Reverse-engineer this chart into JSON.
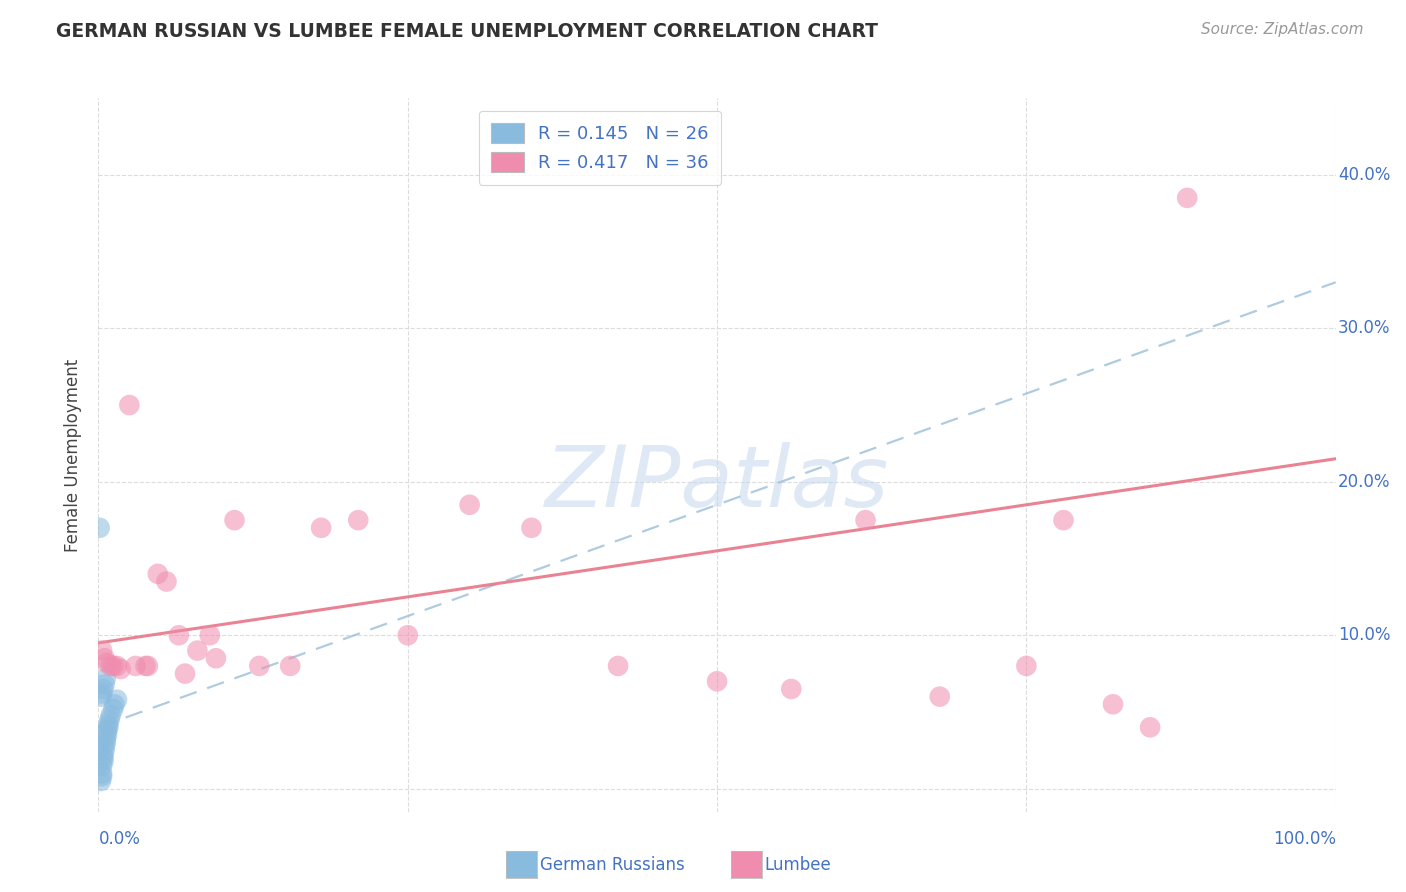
{
  "title": "GERMAN RUSSIAN VS LUMBEE FEMALE UNEMPLOYMENT CORRELATION CHART",
  "source": "Source: ZipAtlas.com",
  "ylabel": "Female Unemployment",
  "watermark": "ZIPatlas",
  "xlim": [
    0.0,
    1.0
  ],
  "ylim": [
    -0.015,
    0.45
  ],
  "yticks": [
    0.0,
    0.1,
    0.2,
    0.3,
    0.4
  ],
  "ytick_labels": [
    "",
    "10.0%",
    "20.0%",
    "30.0%",
    "40.0%"
  ],
  "xticks": [
    0.0,
    0.25,
    0.5,
    0.75,
    1.0
  ],
  "xtick_labels": [
    "0.0%",
    "",
    "",
    "",
    "100.0%"
  ],
  "blue_color": "#89BBDE",
  "pink_color": "#F08CAE",
  "blue_line_color": "#9BBFD8",
  "pink_line_color": "#E8788A",
  "text_blue": "#4472C4",
  "german_russian_x": [
    0.002,
    0.003,
    0.003,
    0.003,
    0.004,
    0.004,
    0.004,
    0.005,
    0.005,
    0.006,
    0.006,
    0.007,
    0.007,
    0.008,
    0.008,
    0.009,
    0.01,
    0.012,
    0.013,
    0.015,
    0.002,
    0.003,
    0.004,
    0.005,
    0.006,
    0.001
  ],
  "german_russian_y": [
    0.005,
    0.008,
    0.01,
    0.015,
    0.018,
    0.02,
    0.022,
    0.025,
    0.028,
    0.03,
    0.033,
    0.035,
    0.038,
    0.04,
    0.042,
    0.045,
    0.048,
    0.052,
    0.055,
    0.058,
    0.06,
    0.062,
    0.065,
    0.068,
    0.072,
    0.17
  ],
  "lumbee_x": [
    0.003,
    0.005,
    0.007,
    0.01,
    0.012,
    0.015,
    0.018,
    0.025,
    0.03,
    0.038,
    0.04,
    0.048,
    0.055,
    0.065,
    0.07,
    0.08,
    0.09,
    0.095,
    0.11,
    0.13,
    0.155,
    0.18,
    0.21,
    0.25,
    0.3,
    0.35,
    0.42,
    0.5,
    0.56,
    0.62,
    0.68,
    0.75,
    0.78,
    0.82,
    0.85,
    0.88
  ],
  "lumbee_y": [
    0.09,
    0.085,
    0.082,
    0.08,
    0.08,
    0.08,
    0.078,
    0.25,
    0.08,
    0.08,
    0.08,
    0.14,
    0.135,
    0.1,
    0.075,
    0.09,
    0.1,
    0.085,
    0.175,
    0.08,
    0.08,
    0.17,
    0.175,
    0.1,
    0.185,
    0.17,
    0.08,
    0.07,
    0.065,
    0.175,
    0.06,
    0.08,
    0.175,
    0.055,
    0.04,
    0.385
  ],
  "blue_trend_x_start": 0.0,
  "blue_trend_x_end": 1.0,
  "blue_trend_y_start": 0.04,
  "blue_trend_y_end": 0.33,
  "pink_trend_x_start": 0.0,
  "pink_trend_x_end": 1.0,
  "pink_trend_y_start": 0.095,
  "pink_trend_y_end": 0.215,
  "grid_color": "#DCDCDC",
  "background_color": "#FFFFFF"
}
